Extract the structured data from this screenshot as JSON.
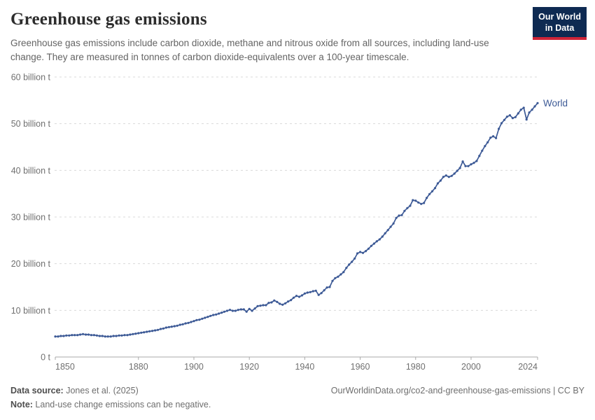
{
  "header": {
    "title": "Greenhouse gas emissions",
    "subtitle": "Greenhouse gas emissions include carbon dioxide, methane and nitrous oxide from all sources, including land-use change. They are measured in tonnes of carbon dioxide-equivalents over a 100-year timescale.",
    "logo": {
      "line1": "Our World",
      "line2": "in Data",
      "bg_color": "#0e2a52",
      "accent_color": "#cf2438"
    }
  },
  "footer": {
    "source_label": "Data source:",
    "source_value": " Jones et al. (2025)",
    "note_label": "Note:",
    "note_value": " Land-use change emissions can be negative.",
    "link": "OurWorldinData.org/co2-and-greenhouse-gas-emissions | CC BY"
  },
  "chart_data": {
    "type": "line",
    "title": "Greenhouse gas emissions",
    "xlabel": "",
    "ylabel": "",
    "unit": "billion t CO2-equivalents",
    "x_range": [
      1850,
      2024
    ],
    "y_range": [
      0,
      60
    ],
    "grid": "dashed-horizontal",
    "legend": "series-end-label",
    "x_ticks": [
      1850,
      1880,
      1900,
      1920,
      1940,
      1960,
      1980,
      2000,
      2024
    ],
    "y_ticks": [
      {
        "value": 0,
        "label": "0 t"
      },
      {
        "value": 10,
        "label": "10 billion t"
      },
      {
        "value": 20,
        "label": "20 billion t"
      },
      {
        "value": 30,
        "label": "30 billion t"
      },
      {
        "value": 40,
        "label": "40 billion t"
      },
      {
        "value": 50,
        "label": "50 billion t"
      },
      {
        "value": 60,
        "label": "60 billion t"
      }
    ],
    "colors": {
      "grid": "#dadada",
      "axis": "#a9a9a9",
      "tick_label": "#707070"
    },
    "series": [
      {
        "name": "World",
        "color": "#3d5a96",
        "x_start": 1850,
        "values": [
          4.4,
          4.4,
          4.5,
          4.5,
          4.6,
          4.6,
          4.7,
          4.7,
          4.7,
          4.8,
          4.9,
          4.8,
          4.8,
          4.7,
          4.7,
          4.6,
          4.5,
          4.5,
          4.4,
          4.4,
          4.4,
          4.5,
          4.5,
          4.6,
          4.6,
          4.7,
          4.7,
          4.8,
          4.9,
          5.0,
          5.1,
          5.2,
          5.3,
          5.4,
          5.5,
          5.6,
          5.7,
          5.8,
          6.0,
          6.1,
          6.3,
          6.4,
          6.5,
          6.6,
          6.7,
          6.9,
          7.0,
          7.2,
          7.3,
          7.5,
          7.7,
          7.9,
          8.0,
          8.2,
          8.4,
          8.6,
          8.8,
          9.0,
          9.1,
          9.3,
          9.5,
          9.7,
          9.9,
          10.1,
          9.9,
          9.9,
          10.1,
          10.2,
          10.2,
          9.7,
          10.3,
          9.9,
          10.4,
          10.9,
          11.0,
          11.1,
          11.1,
          11.6,
          11.7,
          12.1,
          11.8,
          11.4,
          11.2,
          11.5,
          11.9,
          12.2,
          12.7,
          13.1,
          12.9,
          13.2,
          13.6,
          13.8,
          13.9,
          14.1,
          14.2,
          13.3,
          13.7,
          14.3,
          14.9,
          15.0,
          16.3,
          16.9,
          17.2,
          17.7,
          18.2,
          19.1,
          19.8,
          20.4,
          21.1,
          22.2,
          22.5,
          22.3,
          22.7,
          23.2,
          23.8,
          24.3,
          24.8,
          25.2,
          25.8,
          26.5,
          27.2,
          27.9,
          28.6,
          29.8,
          30.3,
          30.4,
          31.3,
          31.9,
          32.4,
          33.6,
          33.5,
          33.1,
          32.8,
          33.0,
          34.1,
          34.9,
          35.5,
          36.2,
          37.2,
          37.8,
          38.6,
          38.9,
          38.6,
          38.8,
          39.3,
          39.9,
          40.5,
          41.9,
          40.9,
          40.9,
          41.3,
          41.6,
          42.0,
          43.1,
          44.2,
          45.2,
          46.0,
          47.0,
          47.3,
          46.9,
          48.9,
          50.1,
          50.8,
          51.5,
          51.8,
          51.2,
          51.4,
          52.2,
          53.0,
          53.4,
          50.9,
          52.4,
          53.0,
          53.7,
          54.4
        ]
      }
    ]
  }
}
